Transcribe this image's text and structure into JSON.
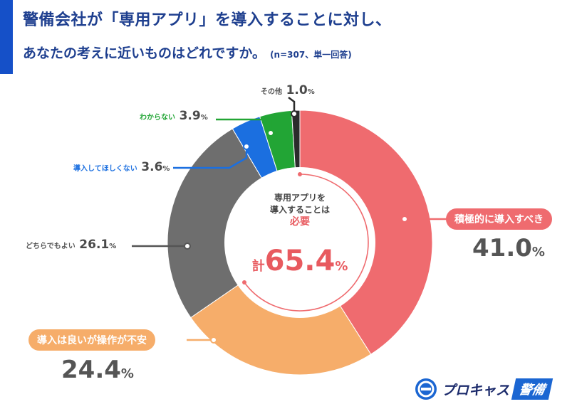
{
  "header": {
    "title_line1": "警備会社が「専用アプリ」を導入することに対し、",
    "title_line2": "あなたの考えに近いものはどれですか。",
    "note": "(n=307、単一回答)"
  },
  "center": {
    "line1": "専用アプリを",
    "line2": "導入することは",
    "line3": "必要",
    "total_prefix": "計",
    "total_value": "65.4",
    "total_unit": "%"
  },
  "logo": {
    "text": "プロキャス",
    "badge": "警備"
  },
  "colors": {
    "title": "#1e3f8f",
    "accent": "#1550c8",
    "s1": "#ef6b6f",
    "s2": "#f6ad6a",
    "s3": "#6e6e6e",
    "s4": "#1b6fe0",
    "s5": "#22a535",
    "s6": "#2b2b2b"
  },
  "chart_data": {
    "type": "pie",
    "title": "警備会社が「専用アプリ」を導入することに対し、あなたの考えに近いものはどれですか。",
    "categories": [
      "積極的に導入すべき",
      "導入は良いが操作が不安",
      "どちらでもよい",
      "導入してほしくない",
      "わからない",
      "その他"
    ],
    "values": [
      41.0,
      24.4,
      26.1,
      3.6,
      3.9,
      1.0
    ],
    "value_labels": [
      "41.0",
      "24.4",
      "26.1",
      "3.6",
      "3.9",
      "1.0"
    ],
    "unit": "%",
    "donut": true,
    "legend": "none (direct labels)"
  }
}
